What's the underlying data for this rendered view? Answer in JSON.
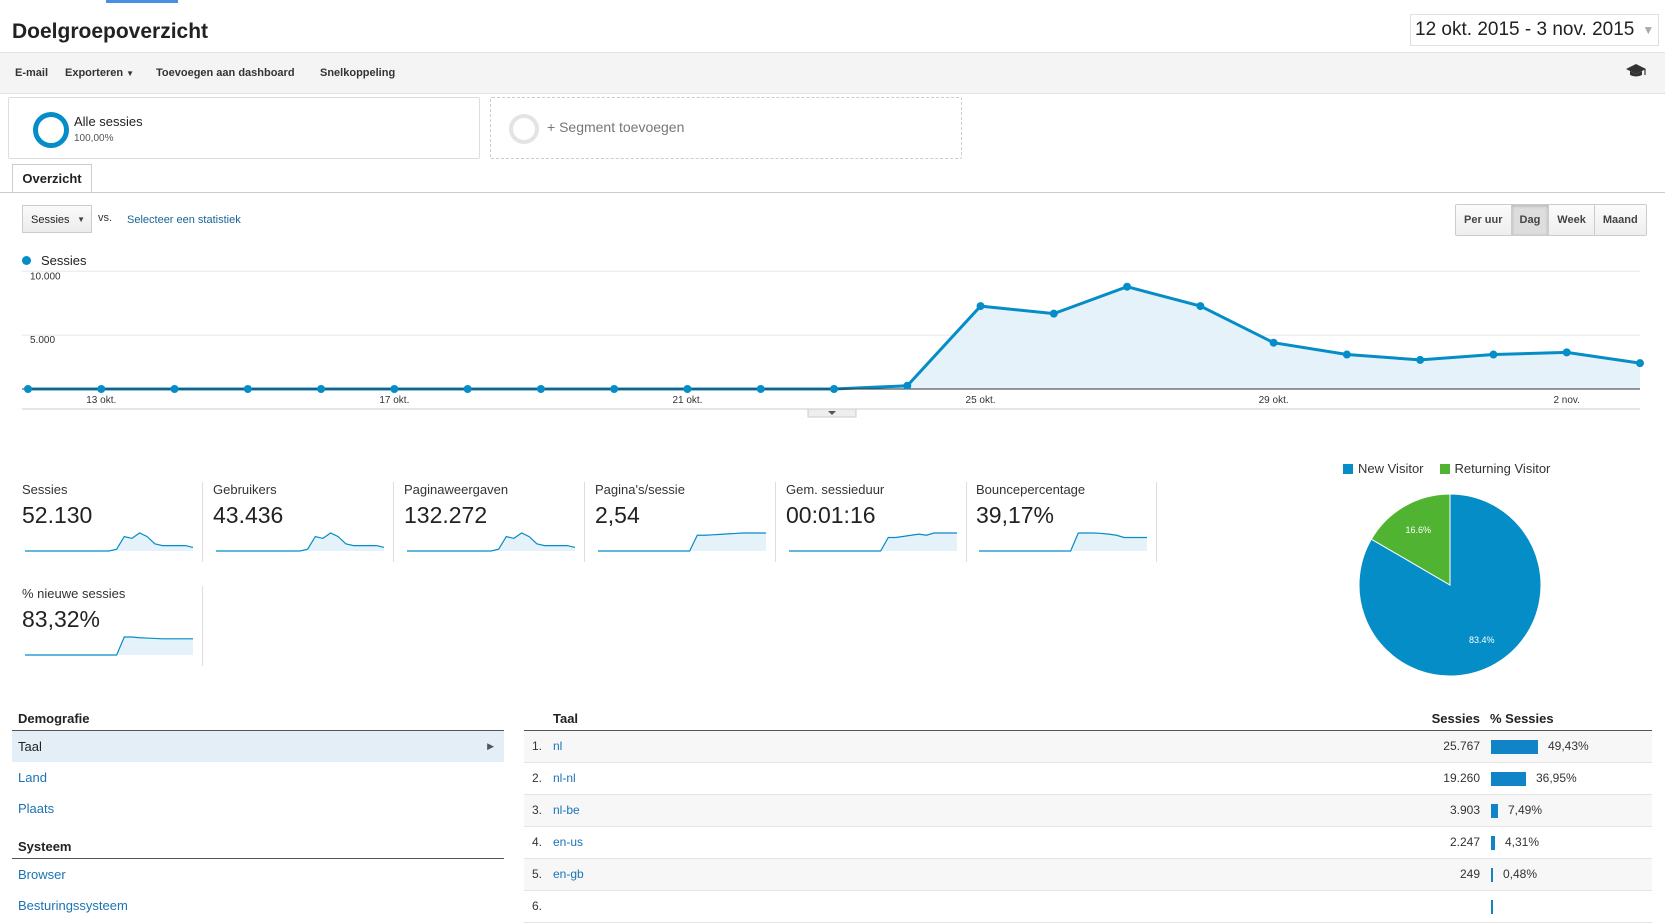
{
  "header": {
    "title": "Doelgroepoverzicht",
    "date_range": "12 okt. 2015 - 3 nov. 2015"
  },
  "toolbar": {
    "email": "E-mail",
    "export": "Exporteren",
    "add_dashboard": "Toevoegen aan dashboard",
    "shortcut": "Snelkoppeling",
    "cap_icon": "graduation-cap-icon"
  },
  "segments": {
    "all_label": "Alle sessies",
    "all_pct": "100,00%",
    "add_label": "+ Segment toevoegen"
  },
  "tabs": {
    "overview": "Overzicht"
  },
  "controls": {
    "metric": "Sessies",
    "vs": "vs.",
    "select_stat": "Selecteer een statistiek",
    "granularity": [
      "Per uur",
      "Dag",
      "Week",
      "Maand"
    ],
    "granularity_active": "Dag"
  },
  "chart_data": [
    {
      "type": "area",
      "series": [
        {
          "name": "Sessies",
          "values": [
            0,
            0,
            0,
            0,
            0,
            0,
            0,
            0,
            0,
            0,
            0,
            0,
            300,
            7700,
            7000,
            9500,
            7700,
            4300,
            3200,
            2700,
            3200,
            3400,
            2400
          ]
        }
      ],
      "x": [
        "12 okt.",
        "13 okt.",
        "14 okt.",
        "15 okt.",
        "16 okt.",
        "17 okt.",
        "18 okt.",
        "19 okt.",
        "20 okt.",
        "21 okt.",
        "22 okt.",
        "23 okt.",
        "24 okt.",
        "25 okt.",
        "26 okt.",
        "27 okt.",
        "28 okt.",
        "29 okt.",
        "30 okt.",
        "31 okt.",
        "1 nov.",
        "2 nov.",
        "3 nov."
      ],
      "x_ticks": [
        "13 okt.",
        "17 okt.",
        "21 okt.",
        "25 okt.",
        "29 okt.",
        "2 nov."
      ],
      "y_ticks": [
        "5.000",
        "10.000"
      ],
      "ylim": [
        0,
        10000
      ],
      "color": "#058dc7",
      "legend": "top-left"
    },
    {
      "type": "pie",
      "categories": [
        "New Visitor",
        "Returning Visitor"
      ],
      "values": [
        83.4,
        16.6
      ],
      "labels": [
        "83.4%",
        "16.6%"
      ],
      "colors": [
        "#058dc7",
        "#50b432"
      ],
      "legend": "top"
    }
  ],
  "scorecards": [
    {
      "title": "Sessies",
      "value": "52.130",
      "spark": [
        0,
        0,
        0,
        0,
        0,
        0,
        0,
        0,
        0,
        0,
        0,
        0,
        1,
        8,
        7,
        10,
        8,
        4,
        3,
        3,
        3,
        3,
        2
      ]
    },
    {
      "title": "Gebruikers",
      "value": "43.436",
      "spark": [
        0,
        0,
        0,
        0,
        0,
        0,
        0,
        0,
        0,
        0,
        0,
        0,
        1,
        8,
        7,
        10,
        8,
        4,
        3,
        3,
        3,
        3,
        2
      ]
    },
    {
      "title": "Paginaweergaven",
      "value": "132.272",
      "spark": [
        0,
        0,
        0,
        0,
        0,
        0,
        0,
        0,
        0,
        0,
        0,
        0,
        1,
        8,
        7,
        10,
        8,
        4,
        3,
        3,
        3,
        3,
        2
      ]
    },
    {
      "title": "Pagina's/sessie",
      "value": "2,54",
      "spark": [
        0,
        0,
        0,
        0,
        0,
        0,
        0,
        0,
        0,
        0,
        0,
        0,
        0,
        7,
        7,
        7.2,
        7.4,
        7.6,
        7.8,
        8,
        8,
        8,
        8
      ]
    },
    {
      "title": "Gem. sessieduur",
      "value": "00:01:16",
      "spark": [
        0,
        0,
        0,
        0,
        0,
        0,
        0,
        0,
        0,
        0,
        0,
        0,
        0,
        6,
        6,
        6.5,
        7,
        7.5,
        7,
        8,
        8,
        8,
        8
      ]
    },
    {
      "title": "Bouncepercentage",
      "value": "39,17%",
      "spark": [
        0,
        0,
        0,
        0,
        0,
        0,
        0,
        0,
        0,
        0,
        0,
        0,
        0,
        8,
        8,
        8,
        7.8,
        7.5,
        7,
        6,
        6,
        6,
        6
      ]
    },
    {
      "title": "% nieuwe sessies",
      "value": "83,32%",
      "spark": [
        0,
        0,
        0,
        0,
        0,
        0,
        0,
        0,
        0,
        0,
        0,
        0,
        0,
        10,
        10,
        9.6,
        9.4,
        9.2,
        9,
        9,
        9,
        9,
        9
      ]
    }
  ],
  "demographics": {
    "section1": "Demografie",
    "items1": [
      "Taal",
      "Land",
      "Plaats"
    ],
    "section2": "Systeem",
    "items2": [
      "Browser",
      "Besturingssysteem"
    ]
  },
  "language_table": {
    "col_lang": "Taal",
    "col_sessions": "Sessies",
    "col_pct": "% Sessies",
    "rows": [
      {
        "rank": "1.",
        "lang": "nl",
        "sessions": "25.767",
        "pct": "49,43%",
        "frac": 0.4943
      },
      {
        "rank": "2.",
        "lang": "nl-nl",
        "sessions": "19.260",
        "pct": "36,95%",
        "frac": 0.3695
      },
      {
        "rank": "3.",
        "lang": "nl-be",
        "sessions": "3.903",
        "pct": "7,49%",
        "frac": 0.0749
      },
      {
        "rank": "4.",
        "lang": "en-us",
        "sessions": "2.247",
        "pct": "4,31%",
        "frac": 0.0431
      },
      {
        "rank": "5.",
        "lang": "en-gb",
        "sessions": "249",
        "pct": "0,48%",
        "frac": 0.0048
      },
      {
        "rank": "6.",
        "lang": "",
        "sessions": "",
        "pct": "",
        "frac": 0
      }
    ]
  }
}
